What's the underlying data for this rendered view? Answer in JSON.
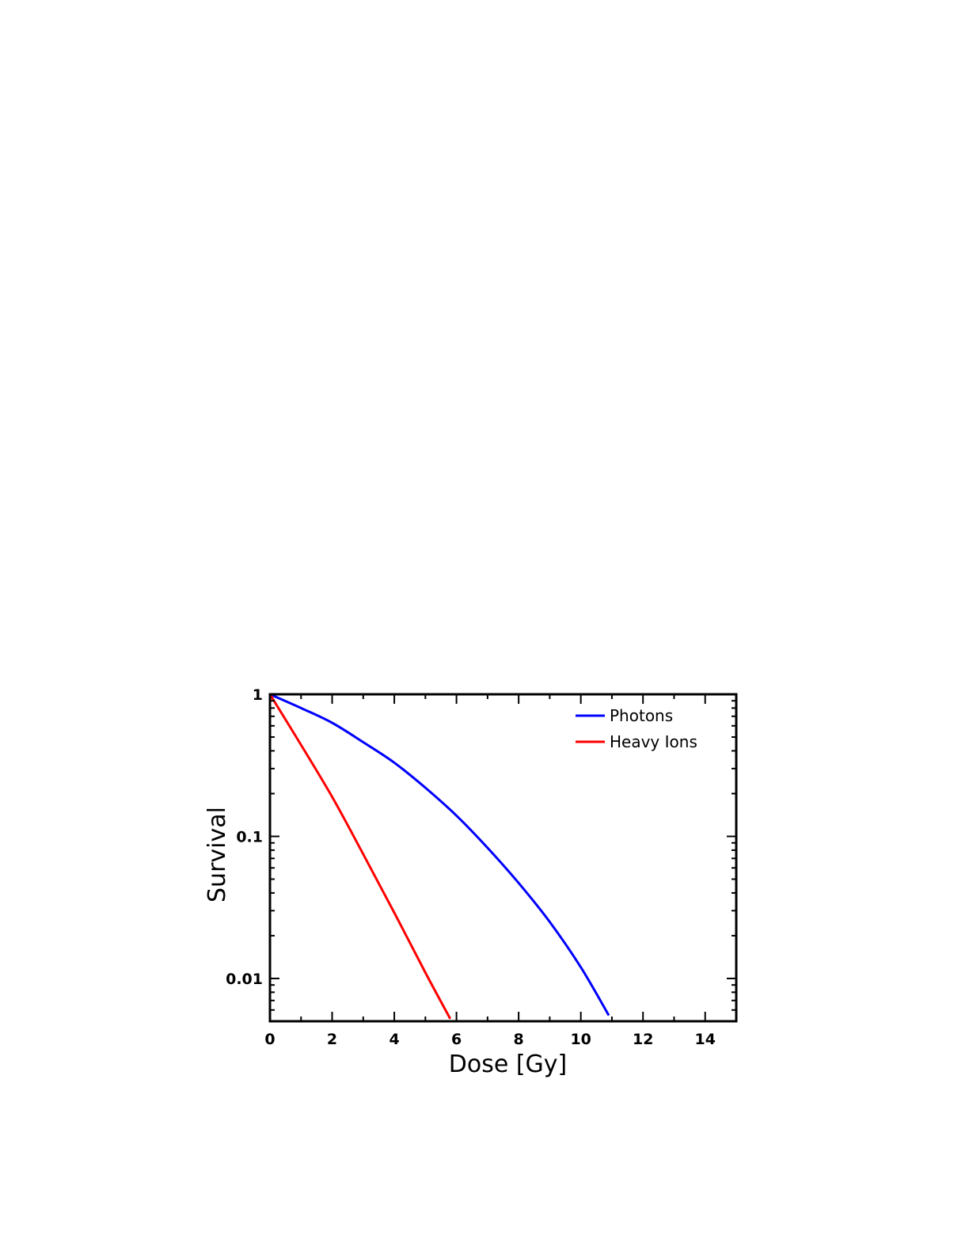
{
  "chart_data": {
    "type": "line",
    "xlabel": "Dose  [Gy]",
    "ylabel": "Survival",
    "xlim": [
      0,
      15
    ],
    "ylim": [
      0.005,
      1
    ],
    "yscale": "log",
    "grid": false,
    "legend_position": "top-right",
    "x_ticks": [
      {
        "value": 0,
        "label": "0"
      },
      {
        "value": 2,
        "label": "2"
      },
      {
        "value": 4,
        "label": "4"
      },
      {
        "value": 6,
        "label": "6"
      },
      {
        "value": 8,
        "label": "8"
      },
      {
        "value": 10,
        "label": "10"
      },
      {
        "value": 12,
        "label": "12"
      },
      {
        "value": 14,
        "label": "14"
      }
    ],
    "y_ticks": [
      {
        "value": 1,
        "label": "1"
      },
      {
        "value": 0.1,
        "label": "0.1"
      },
      {
        "value": 0.01,
        "label": "0.01"
      }
    ],
    "series": [
      {
        "name": "Photons",
        "color": "#0000ff",
        "x": [
          0,
          1,
          2,
          3,
          4,
          5,
          6,
          7,
          8,
          9,
          10,
          10.9
        ],
        "y": [
          1.0,
          0.8,
          0.63,
          0.46,
          0.33,
          0.22,
          0.14,
          0.083,
          0.047,
          0.025,
          0.012,
          0.0055
        ]
      },
      {
        "name": "Heavy Ions",
        "color": "#ff0000",
        "x": [
          0,
          1,
          2,
          3,
          4,
          5,
          5.8
        ],
        "y": [
          1.0,
          0.44,
          0.19,
          0.075,
          0.029,
          0.011,
          0.0052
        ]
      }
    ]
  }
}
